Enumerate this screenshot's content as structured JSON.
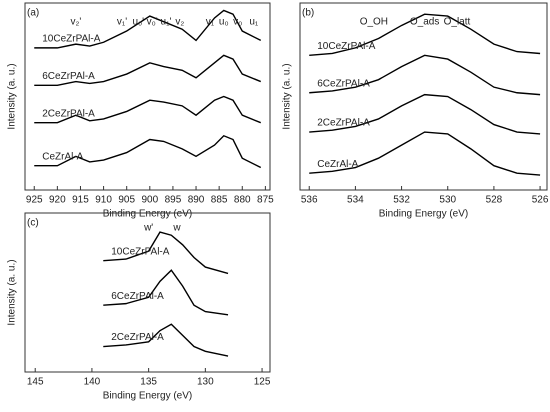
{
  "chart_data": [
    {
      "type": "line",
      "panel": "(a)",
      "xlabel": "Binding Energy (eV)",
      "ylabel": "Intensity (a. u.)",
      "xlim": [
        927,
        874
      ],
      "ylim": [
        0,
        100
      ],
      "xticks": [
        925,
        920,
        915,
        910,
        905,
        900,
        895,
        890,
        885,
        880,
        875
      ],
      "x": [
        925,
        920,
        916,
        913,
        910,
        905,
        900,
        897,
        893,
        890,
        886,
        884,
        882,
        880,
        876
      ],
      "series": [
        {
          "name": "10CeZrPAl-A",
          "color": "#000000",
          "values": [
            76,
            76,
            78,
            77,
            79,
            85,
            93,
            90,
            86,
            80,
            92,
            96,
            94,
            85,
            80
          ]
        },
        {
          "name": "6CeZrPAl-A",
          "color": "#000000",
          "values": [
            56,
            56,
            58,
            57,
            58,
            62,
            68,
            66,
            64,
            60,
            68,
            72,
            70,
            62,
            58
          ]
        },
        {
          "name": "2CeZrPAl-A",
          "color": "#000000",
          "values": [
            36,
            36,
            40,
            37,
            38,
            42,
            48,
            47,
            45,
            40,
            48,
            50,
            48,
            40,
            36
          ]
        },
        {
          "name": "CeZrAl-A",
          "color": "#000000",
          "values": [
            13,
            13,
            18,
            15,
            16,
            20,
            27,
            26,
            22,
            18,
            24,
            29,
            27,
            17,
            12
          ]
        }
      ],
      "annotations": [
        {
          "text": "v₂'",
          "x": 916
        },
        {
          "text": "v₁'",
          "x": 906
        },
        {
          "text": "u₀'",
          "x": 902.5
        },
        {
          "text": "v₀'",
          "x": 899.5
        },
        {
          "text": "u₁'",
          "x": 896.5
        },
        {
          "text": "v₂",
          "x": 893.5
        },
        {
          "text": "v₁",
          "x": 887
        },
        {
          "text": "u₀",
          "x": 884
        },
        {
          "text": "v₀",
          "x": 881
        },
        {
          "text": "u₁",
          "x": 877.5
        }
      ]
    },
    {
      "type": "line",
      "panel": "(b)",
      "xlabel": "Binding Energy (eV)",
      "ylabel": "Intensity (a. u.)",
      "xlim": [
        536.4,
        525.7
      ],
      "ylim": [
        0,
        100
      ],
      "xticks": [
        536,
        534,
        532,
        530,
        528,
        526
      ],
      "x": [
        536,
        535,
        534,
        533,
        532,
        531,
        530,
        529,
        528,
        527,
        526
      ],
      "series": [
        {
          "name": "10CeZrPAl-A",
          "color": "#000000",
          "values": [
            72,
            73,
            76,
            81,
            88,
            94,
            93,
            86,
            78,
            74,
            73
          ]
        },
        {
          "name": "6CeZrPAl-A",
          "color": "#000000",
          "values": [
            52,
            53,
            55,
            59,
            66,
            72,
            70,
            63,
            55,
            52,
            51
          ]
        },
        {
          "name": "2CeZrPAl-A",
          "color": "#000000",
          "values": [
            31,
            32,
            34,
            38,
            45,
            51,
            50,
            43,
            35,
            31,
            30
          ]
        },
        {
          "name": "CeZrAl-A",
          "color": "#000000",
          "values": [
            9,
            10,
            12,
            17,
            24,
            31,
            30,
            22,
            13,
            9,
            8
          ]
        }
      ],
      "annotations": [
        {
          "text": "O_OH",
          "x": 533.2
        },
        {
          "text": "O_ads",
          "x": 531
        },
        {
          "text": "O_latt",
          "x": 529.6
        }
      ]
    },
    {
      "type": "line",
      "panel": "(c)",
      "xlabel": "Binding Energy (eV)",
      "ylabel": "Intensity (a. u.)",
      "xlim": [
        145.9,
        124.3
      ],
      "ylim": [
        0,
        100
      ],
      "xticks": [
        145,
        140,
        135,
        130,
        125
      ],
      "x": [
        139,
        137,
        135,
        134,
        133,
        132,
        131,
        130,
        128
      ],
      "series": [
        {
          "name": "10CeZrPAl-A",
          "color": "#000000",
          "values": [
            70,
            71,
            76,
            88,
            86,
            80,
            72,
            66,
            62
          ]
        },
        {
          "name": "6CeZrPAl-A",
          "color": "#000000",
          "values": [
            42,
            43,
            47,
            57,
            64,
            54,
            42,
            38,
            36
          ]
        },
        {
          "name": "2CeZrPAl-A",
          "color": "#000000",
          "values": [
            16,
            17,
            19,
            26,
            30,
            23,
            16,
            13,
            10
          ]
        }
      ],
      "annotations": [
        {
          "text": "w'",
          "x": 135
        },
        {
          "text": "w",
          "x": 132.5
        }
      ]
    }
  ]
}
